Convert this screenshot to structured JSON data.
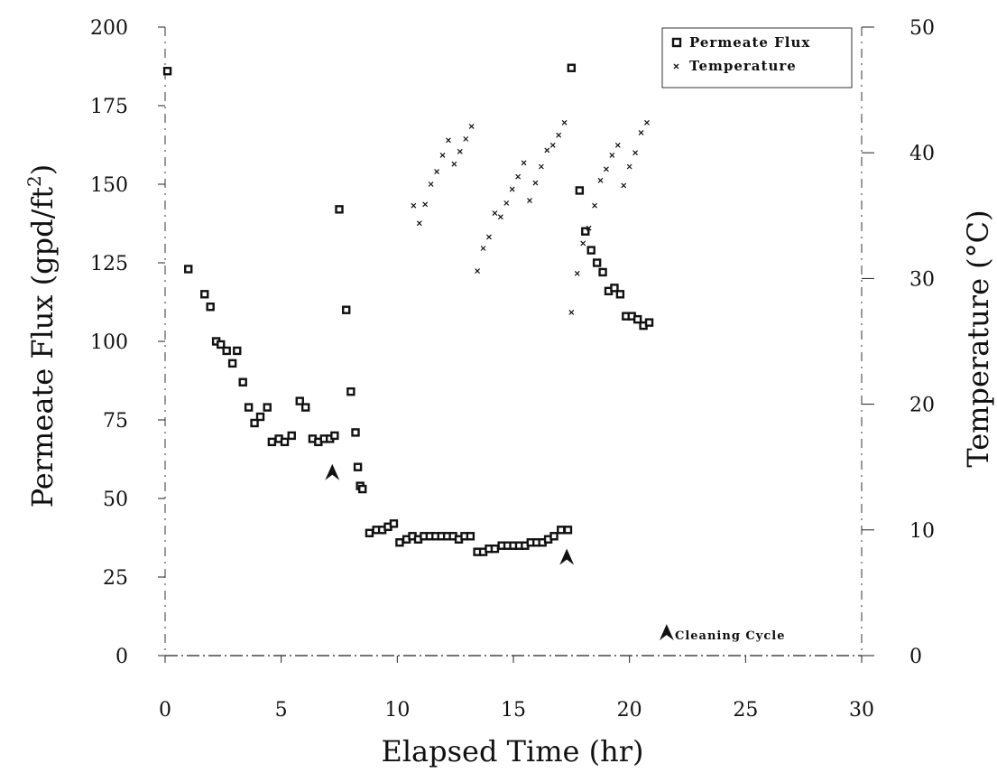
{
  "chart_data": {
    "type": "scatter",
    "xlabel": "Elapsed Time (hr)",
    "ylabel_left": {
      "pre": "Permeate Flux (gpd/ft",
      "sup": "2",
      "post": ")"
    },
    "ylabel_right": "Temperature (°C)",
    "xlim": [
      0,
      30
    ],
    "ylim_left": [
      0,
      200
    ],
    "ylim_right": [
      0,
      50
    ],
    "x_ticks": [
      "0",
      "5",
      "10",
      "15",
      "20",
      "25",
      "30"
    ],
    "y_left_ticks": [
      "0",
      "25",
      "50",
      "75",
      "100",
      "125",
      "150",
      "175",
      "200"
    ],
    "y_right_ticks": [
      "0",
      "10",
      "20",
      "30",
      "40",
      "50"
    ],
    "legend": {
      "position": "top-right",
      "entries": [
        "Permeate Flux",
        "Temperature"
      ]
    },
    "annotation": "Cleaning Cycle",
    "cleaning_arrows": [
      {
        "x": 7.2,
        "y": 61
      },
      {
        "x": 17.3,
        "y": 34
      }
    ],
    "legend_arrow": {
      "x": 21.6,
      "y": 8
    },
    "series": [
      {
        "name": "Permeate Flux",
        "axis": "left",
        "marker": "square",
        "points": [
          [
            0.1,
            186
          ],
          [
            1.0,
            123
          ],
          [
            1.7,
            115
          ],
          [
            1.95,
            111
          ],
          [
            2.2,
            100
          ],
          [
            2.4,
            99
          ],
          [
            2.65,
            97
          ],
          [
            2.9,
            93
          ],
          [
            3.1,
            97
          ],
          [
            3.35,
            87
          ],
          [
            3.6,
            79
          ],
          [
            3.85,
            74
          ],
          [
            4.1,
            76
          ],
          [
            4.4,
            79
          ],
          [
            4.6,
            68
          ],
          [
            4.9,
            69
          ],
          [
            5.15,
            68
          ],
          [
            5.45,
            70
          ],
          [
            5.8,
            81
          ],
          [
            6.05,
            79
          ],
          [
            6.35,
            69
          ],
          [
            6.6,
            68
          ],
          [
            6.85,
            69
          ],
          [
            7.1,
            69
          ],
          [
            7.3,
            70
          ],
          [
            7.5,
            142
          ],
          [
            7.8,
            110
          ],
          [
            8.0,
            84
          ],
          [
            8.2,
            71
          ],
          [
            8.3,
            60
          ],
          [
            8.4,
            54
          ],
          [
            8.5,
            53
          ],
          [
            8.8,
            39
          ],
          [
            9.1,
            40
          ],
          [
            9.35,
            40
          ],
          [
            9.6,
            41
          ],
          [
            9.85,
            42
          ],
          [
            10.1,
            36
          ],
          [
            10.4,
            37
          ],
          [
            10.65,
            38
          ],
          [
            10.9,
            37
          ],
          [
            11.15,
            38
          ],
          [
            11.4,
            38
          ],
          [
            11.65,
            38
          ],
          [
            11.9,
            38
          ],
          [
            12.15,
            38
          ],
          [
            12.4,
            38
          ],
          [
            12.65,
            37
          ],
          [
            12.9,
            38
          ],
          [
            13.15,
            38
          ],
          [
            13.45,
            33
          ],
          [
            13.7,
            33
          ],
          [
            13.95,
            34
          ],
          [
            14.2,
            34
          ],
          [
            14.5,
            35
          ],
          [
            14.75,
            35
          ],
          [
            15.0,
            35
          ],
          [
            15.25,
            35
          ],
          [
            15.5,
            35
          ],
          [
            15.75,
            36
          ],
          [
            16.0,
            36
          ],
          [
            16.25,
            36
          ],
          [
            16.5,
            37
          ],
          [
            16.75,
            38
          ],
          [
            17.05,
            40
          ],
          [
            17.35,
            40
          ],
          [
            17.5,
            187
          ],
          [
            17.85,
            148
          ],
          [
            18.1,
            135
          ],
          [
            18.35,
            129
          ],
          [
            18.6,
            125
          ],
          [
            18.85,
            122
          ],
          [
            19.1,
            116
          ],
          [
            19.35,
            117
          ],
          [
            19.6,
            115
          ],
          [
            19.85,
            108
          ],
          [
            20.1,
            108
          ],
          [
            20.35,
            107
          ],
          [
            20.6,
            105
          ],
          [
            20.85,
            106
          ]
        ]
      },
      {
        "name": "Temperature",
        "axis": "right",
        "marker": "x",
        "points": [
          [
            10.7,
            35.8
          ],
          [
            10.95,
            34.4
          ],
          [
            11.2,
            35.9
          ],
          [
            11.45,
            37.5
          ],
          [
            11.7,
            38.5
          ],
          [
            11.95,
            39.8
          ],
          [
            12.2,
            41.0
          ],
          [
            12.45,
            39.1
          ],
          [
            12.7,
            40.1
          ],
          [
            12.95,
            41.1
          ],
          [
            13.2,
            42.1
          ],
          [
            13.45,
            30.6
          ],
          [
            13.7,
            32.4
          ],
          [
            13.95,
            33.3
          ],
          [
            14.2,
            35.2
          ],
          [
            14.45,
            34.9
          ],
          [
            14.7,
            36.0
          ],
          [
            14.95,
            37.1
          ],
          [
            15.2,
            38.1
          ],
          [
            15.45,
            39.2
          ],
          [
            15.7,
            36.2
          ],
          [
            15.95,
            37.6
          ],
          [
            16.2,
            38.9
          ],
          [
            16.45,
            40.2
          ],
          [
            16.7,
            40.6
          ],
          [
            16.95,
            41.4
          ],
          [
            17.2,
            42.4
          ],
          [
            17.5,
            27.3
          ],
          [
            17.75,
            30.4
          ],
          [
            18.0,
            32.8
          ],
          [
            18.25,
            34.0
          ],
          [
            18.5,
            35.8
          ],
          [
            18.75,
            37.8
          ],
          [
            19.0,
            38.7
          ],
          [
            19.25,
            39.8
          ],
          [
            19.5,
            40.6
          ],
          [
            19.75,
            37.4
          ],
          [
            20.0,
            38.9
          ],
          [
            20.25,
            40.0
          ],
          [
            20.5,
            41.6
          ],
          [
            20.75,
            42.4
          ]
        ]
      }
    ]
  }
}
